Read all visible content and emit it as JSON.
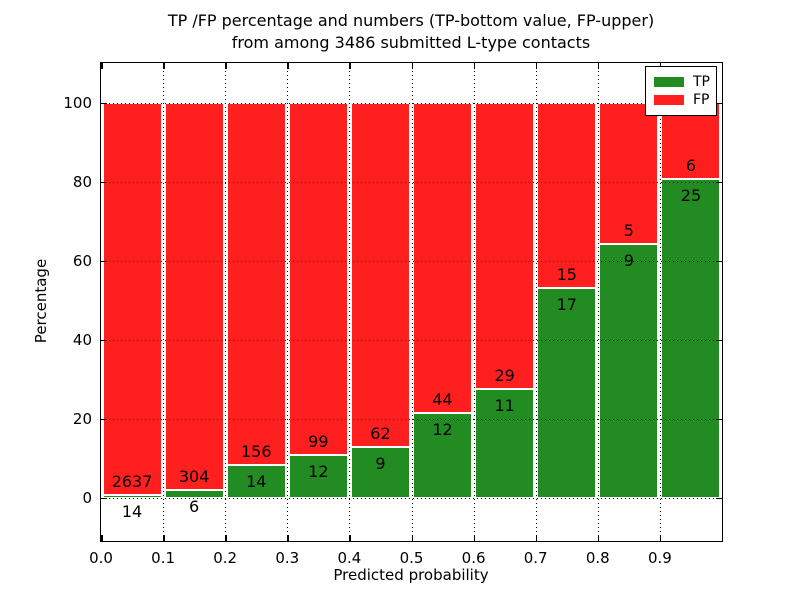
{
  "figure": {
    "title_line1": "TP /FP percentage and numbers (TP-bottom value, FP-upper)",
    "title_line2": "from among 3486 submitted L-type contacts",
    "background_color": "#ffffff"
  },
  "axes": {
    "xlabel": "Predicted probability",
    "ylabel": "Percentage",
    "x_tick_labels": [
      "0.0",
      "0.1",
      "0.2",
      "0.3",
      "0.4",
      "0.5",
      "0.6",
      "0.7",
      "0.8",
      "0.9"
    ],
    "x_tick_values": [
      0.0,
      0.1,
      0.2,
      0.3,
      0.4,
      0.5,
      0.6,
      0.7,
      0.8,
      0.9
    ],
    "y_tick_labels": [
      "0",
      "20",
      "40",
      "60",
      "80",
      "100"
    ],
    "y_tick_values": [
      0,
      20,
      40,
      60,
      80,
      100
    ],
    "xlim": [
      0.0,
      1.0
    ],
    "ylim": [
      -11,
      110
    ],
    "grid_style": "dotted"
  },
  "legend": {
    "position": "upper-right",
    "entries": [
      {
        "label": "TP",
        "color": "#228b22"
      },
      {
        "label": "FP",
        "color": "#ff1f1f"
      }
    ]
  },
  "chart_data": {
    "type": "bar",
    "stacked": true,
    "normalized": "each bin stacks to 100%",
    "title": "TP /FP percentage and numbers (TP-bottom value, FP-upper) from among 3486 submitted L-type contacts",
    "xlabel": "Predicted probability",
    "ylabel": "Percentage",
    "total_contacts": 3486,
    "bin_start": [
      0.0,
      0.1,
      0.2,
      0.3,
      0.4,
      0.5,
      0.6,
      0.7,
      0.8,
      0.9
    ],
    "bin_width": 0.1,
    "series": [
      {
        "name": "TP",
        "color": "#228b22",
        "counts": [
          14,
          6,
          14,
          12,
          9,
          12,
          11,
          17,
          9,
          25
        ]
      },
      {
        "name": "FP",
        "color": "#ff1f1f",
        "counts": [
          2637,
          304,
          156,
          99,
          62,
          44,
          29,
          15,
          5,
          6
        ]
      }
    ],
    "tp_percent": [
      0.53,
      1.94,
      8.24,
      10.81,
      12.68,
      21.43,
      27.5,
      53.13,
      64.29,
      80.65
    ],
    "ylim": [
      -11,
      110
    ],
    "legend_position": "upper right",
    "grid": true
  }
}
